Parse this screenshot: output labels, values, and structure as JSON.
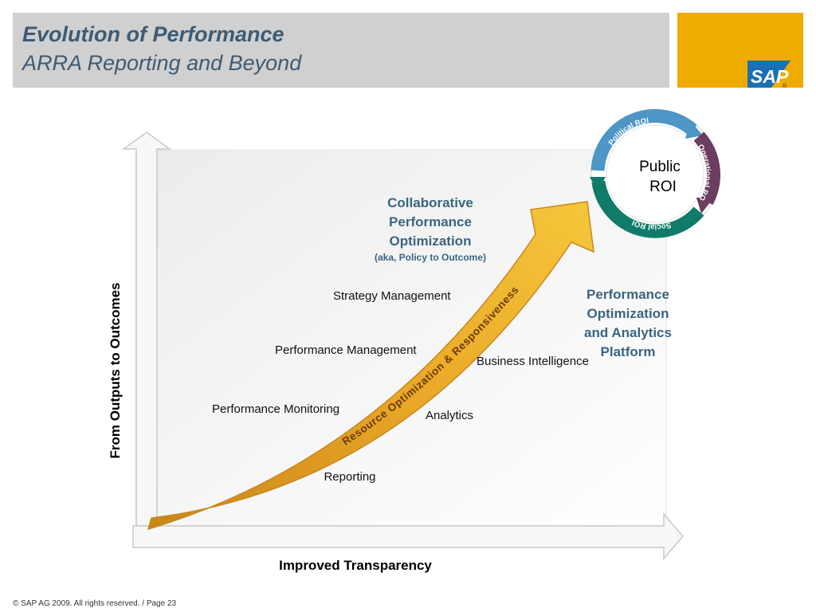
{
  "header": {
    "title": "Evolution of Performance",
    "subtitle": "ARRA Reporting and Beyond",
    "logo_text": "SAP",
    "logo_mark": "®"
  },
  "diagram": {
    "arrow_label": "Resource Optimization & Responsiveness",
    "y_axis_label": "From Outputs to Outcomes",
    "x_axis_label": "Improved Transparency",
    "stages_left": [
      "Performance Monitoring",
      "Performance Management",
      "Strategy Management"
    ],
    "stages_right": [
      "Reporting",
      "Analytics",
      "Business Intelligence"
    ],
    "top_heading": [
      "Collaborative",
      "Performance",
      "Optimization"
    ],
    "top_note": "(aka, Policy to Outcome)",
    "platform_heading": [
      "Performance",
      "Optimization",
      "and Analytics",
      "Platform"
    ],
    "roi": {
      "center": [
        "Public",
        "ROI"
      ],
      "segments": [
        "Political ROI",
        "Operational ROI",
        "Social ROI"
      ]
    },
    "colors": {
      "arrow": "#f0ab00",
      "heading": "#3a6580",
      "political": "#4d96c6",
      "operational": "#6b3d5f",
      "social": "#0f7b68"
    }
  },
  "footer": {
    "text": "© SAP AG 2009. All rights reserved. / Page 23"
  }
}
